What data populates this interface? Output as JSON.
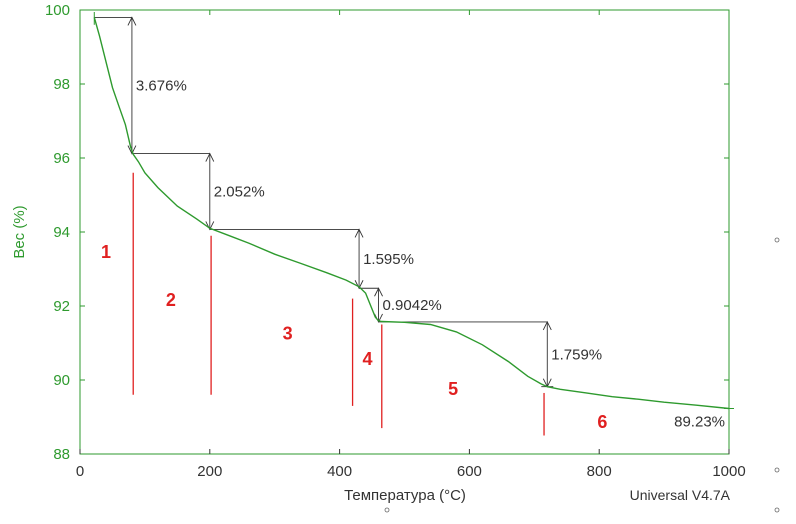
{
  "chart_data": {
    "type": "line",
    "xlabel": "Температура (°C)",
    "ylabel": "Вес (%)",
    "xlim": [
      0,
      1000
    ],
    "ylim": [
      88,
      100
    ],
    "x_ticks": [
      0,
      200,
      400,
      600,
      800,
      1000
    ],
    "y_ticks": [
      88,
      90,
      92,
      94,
      96,
      98,
      100
    ],
    "grid": false,
    "series": [
      {
        "color": "#2e9a2e",
        "x": [
          22,
          30,
          40,
          50,
          60,
          70,
          78,
          82,
          90,
          100,
          120,
          150,
          180,
          200,
          230,
          260,
          300,
          340,
          380,
          410,
          430,
          440,
          448,
          455,
          460,
          465,
          500,
          540,
          580,
          620,
          660,
          690,
          710,
          720,
          740,
          780,
          820,
          860,
          900,
          950,
          1000
        ],
        "y": [
          99.8,
          99.3,
          98.6,
          97.9,
          97.4,
          96.9,
          96.3,
          96.1,
          95.9,
          95.6,
          95.2,
          94.7,
          94.35,
          94.1,
          93.9,
          93.7,
          93.4,
          93.15,
          92.9,
          92.7,
          92.52,
          92.35,
          92.0,
          91.7,
          91.6,
          91.58,
          91.56,
          91.5,
          91.3,
          90.95,
          90.5,
          90.1,
          89.9,
          89.82,
          89.75,
          89.65,
          89.55,
          89.48,
          89.4,
          89.32,
          89.23
        ]
      }
    ],
    "annotations": {
      "step_losses": [
        {
          "label": "3.676%",
          "x": 80,
          "y_top": 99.8,
          "y_bottom": 96.12
        },
        {
          "label": "2.052%",
          "x": 200,
          "y_top": 96.12,
          "y_bottom": 94.07
        },
        {
          "label": "1.595%",
          "x": 430,
          "y_top": 94.07,
          "y_bottom": 92.48
        },
        {
          "label": "0.9042%",
          "x": 460,
          "y_top": 92.48,
          "y_bottom": 91.57
        },
        {
          "label": "1.759%",
          "x": 720,
          "y_top": 91.57,
          "y_bottom": 89.82
        }
      ],
      "residue": {
        "label": "89.23%",
        "x": 1000,
        "y": 89.23
      },
      "regions": [
        {
          "label": "1",
          "x": 40,
          "y": 93.3
        },
        {
          "label": "2",
          "x": 140,
          "y": 92.0
        },
        {
          "label": "3",
          "x": 320,
          "y": 91.1
        },
        {
          "label": "4",
          "x": 443,
          "y": 90.4
        },
        {
          "label": "5",
          "x": 575,
          "y": 89.6
        },
        {
          "label": "6",
          "x": 805,
          "y": 88.7
        }
      ],
      "boundaries": [
        {
          "x": 82,
          "y_top": 95.6,
          "y_bottom": 89.6
        },
        {
          "x": 202,
          "y_top": 93.9,
          "y_bottom": 89.6
        },
        {
          "x": 420,
          "y_top": 92.2,
          "y_bottom": 89.3
        },
        {
          "x": 465,
          "y_top": 91.5,
          "y_bottom": 88.7
        },
        {
          "x": 715,
          "y_top": 89.65,
          "y_bottom": 88.5
        }
      ]
    },
    "footer": "Universal V4.7A"
  },
  "colors": {
    "curve": "#2e9a2e",
    "axis": "#2e9a2e",
    "marker": "#e02020",
    "annotation": "#333333"
  }
}
